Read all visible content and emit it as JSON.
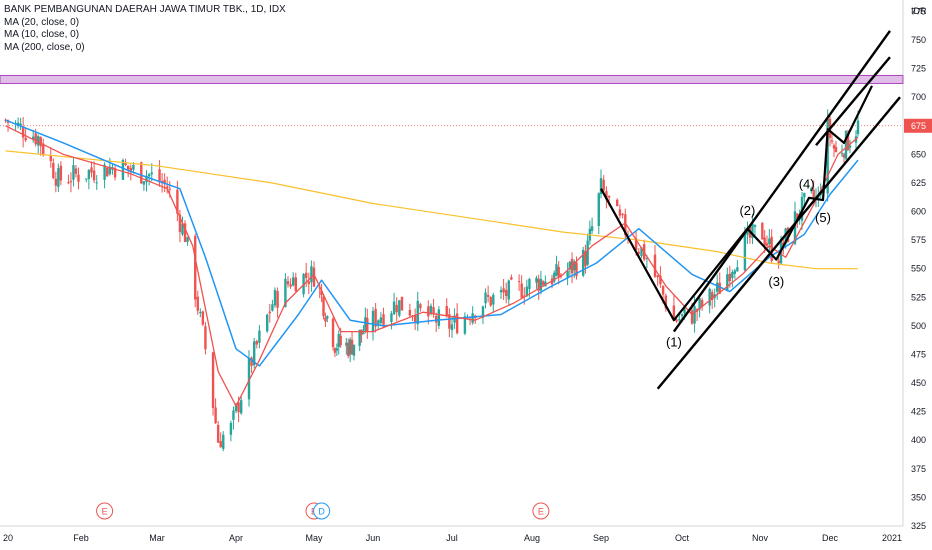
{
  "legend": {
    "title": "BANK PEMBANGUNAN DAERAH JAWA TIMUR TBK., 1D, IDX",
    "ma1": "MA (20, close, 0)",
    "ma2": "MA (10, close, 0)",
    "ma3": "MA (200, close, 0)"
  },
  "colors": {
    "up": "#26a69a",
    "down": "#ef5350",
    "ma10": "#ef5350",
    "ma20": "#2196f3",
    "ma200": "#fbc02d",
    "zone": "#e1bee7",
    "zone_border": "#ab47bc",
    "price_label": "#ef5350",
    "events": "#ef5350",
    "dividend": "#2196f3"
  },
  "chart_data": {
    "type": "candlestick",
    "currency": "IDR",
    "last_price": "675",
    "y_ticks": [
      "775",
      "750",
      "725",
      "700",
      "675",
      "650",
      "625",
      "600",
      "575",
      "550",
      "525",
      "500",
      "475",
      "450",
      "425",
      "400",
      "375",
      "350",
      "325"
    ],
    "x_ticks": [
      "20",
      "Feb",
      "Mar",
      "Apr",
      "May",
      "Jun",
      "Jul",
      "Aug",
      "Sep",
      "Oct",
      "Nov",
      "Dec",
      "2021"
    ],
    "ylim": [
      325,
      785
    ],
    "resistance_zone": [
      712,
      719
    ],
    "price_path": [
      [
        "2020-01-02",
        680
      ],
      [
        "2020-01-15",
        665
      ],
      [
        "2020-01-23",
        628
      ],
      [
        "2020-02-05",
        635
      ],
      [
        "2020-02-15",
        640
      ],
      [
        "2020-02-27",
        632
      ],
      [
        "2020-03-05",
        622
      ],
      [
        "2020-03-12",
        580
      ],
      [
        "2020-03-20",
        480
      ],
      [
        "2020-03-25",
        400
      ],
      [
        "2020-03-30",
        410
      ],
      [
        "2020-04-07",
        470
      ],
      [
        "2020-04-15",
        520
      ],
      [
        "2020-04-22",
        540
      ],
      [
        "2020-05-01",
        545
      ],
      [
        "2020-05-05",
        525
      ],
      [
        "2020-05-12",
        485
      ],
      [
        "2020-05-20",
        482
      ],
      [
        "2020-06-01",
        505
      ],
      [
        "2020-06-10",
        520
      ],
      [
        "2020-06-20",
        510
      ],
      [
        "2020-07-01",
        500
      ],
      [
        "2020-07-12",
        520
      ],
      [
        "2020-07-24",
        530
      ],
      [
        "2020-08-05",
        540
      ],
      [
        "2020-08-15",
        545
      ],
      [
        "2020-08-25",
        560
      ],
      [
        "2020-09-01",
        620
      ],
      [
        "2020-09-08",
        590
      ],
      [
        "2020-09-18",
        560
      ],
      [
        "2020-09-28",
        505
      ],
      [
        "2020-10-05",
        510
      ],
      [
        "2020-10-15",
        530
      ],
      [
        "2020-10-25",
        570
      ],
      [
        "2020-11-01",
        585
      ],
      [
        "2020-11-08",
        558
      ],
      [
        "2020-11-15",
        590
      ],
      [
        "2020-11-22",
        612
      ],
      [
        "2020-11-26",
        610
      ],
      [
        "2020-11-30",
        672
      ],
      [
        "2020-12-04",
        650
      ],
      [
        "2020-12-10",
        662
      ],
      [
        "2020-12-15",
        675
      ]
    ],
    "ma10": [
      [
        "2020-01-02",
        675
      ],
      [
        "2020-01-25",
        650
      ],
      [
        "2020-02-20",
        633
      ],
      [
        "2020-03-05",
        620
      ],
      [
        "2020-03-15",
        570
      ],
      [
        "2020-03-25",
        460
      ],
      [
        "2020-04-01",
        430
      ],
      [
        "2020-04-10",
        470
      ],
      [
        "2020-04-20",
        520
      ],
      [
        "2020-05-01",
        545
      ],
      [
        "2020-05-15",
        495
      ],
      [
        "2020-06-01",
        495
      ],
      [
        "2020-06-20",
        512
      ],
      [
        "2020-07-10",
        505
      ],
      [
        "2020-07-25",
        520
      ],
      [
        "2020-08-15",
        545
      ],
      [
        "2020-08-28",
        570
      ],
      [
        "2020-09-10",
        590
      ],
      [
        "2020-09-25",
        535
      ],
      [
        "2020-10-05",
        510
      ],
      [
        "2020-10-25",
        545
      ],
      [
        "2020-11-05",
        570
      ],
      [
        "2020-11-12",
        560
      ],
      [
        "2020-11-25",
        610
      ],
      [
        "2020-12-05",
        650
      ],
      [
        "2020-12-15",
        665
      ]
    ],
    "ma20": [
      [
        "2020-01-02",
        680
      ],
      [
        "2020-01-25",
        660
      ],
      [
        "2020-02-20",
        635
      ],
      [
        "2020-03-10",
        620
      ],
      [
        "2020-03-20",
        560
      ],
      [
        "2020-04-01",
        480
      ],
      [
        "2020-04-10",
        465
      ],
      [
        "2020-04-25",
        510
      ],
      [
        "2020-05-05",
        540
      ],
      [
        "2020-05-20",
        505
      ],
      [
        "2020-06-05",
        500
      ],
      [
        "2020-06-25",
        505
      ],
      [
        "2020-07-20",
        510
      ],
      [
        "2020-08-10",
        535
      ],
      [
        "2020-08-30",
        555
      ],
      [
        "2020-09-15",
        585
      ],
      [
        "2020-10-05",
        545
      ],
      [
        "2020-10-20",
        530
      ],
      [
        "2020-11-05",
        560
      ],
      [
        "2020-11-20",
        580
      ],
      [
        "2020-12-01",
        615
      ],
      [
        "2020-12-15",
        645
      ]
    ],
    "ma200": [
      [
        "2020-01-02",
        653
      ],
      [
        "2020-03-01",
        640
      ],
      [
        "2020-04-15",
        625
      ],
      [
        "2020-06-01",
        607
      ],
      [
        "2020-07-15",
        592
      ],
      [
        "2020-08-15",
        582
      ],
      [
        "2020-09-15",
        575
      ],
      [
        "2020-10-15",
        565
      ],
      [
        "2020-11-05",
        555
      ],
      [
        "2020-11-25",
        550
      ],
      [
        "2020-12-15",
        550
      ]
    ],
    "channel_lines": [
      [
        [
          "2020-09-28",
          495
        ],
        [
          "2020-12-31",
          758
        ]
      ],
      [
        [
          "2020-09-22",
          445
        ],
        [
          "2021-01-05",
          700
        ]
      ],
      [
        [
          "2020-11-25",
          658
        ],
        [
          "2020-12-31",
          735
        ]
      ]
    ],
    "wave_path": [
      [
        "2020-09-01",
        620
      ],
      [
        "2020-09-28",
        505
      ],
      [
        "2020-10-27",
        585
      ],
      [
        "2020-11-08",
        558
      ],
      [
        "2020-11-22",
        612
      ],
      [
        "2020-11-28",
        610
      ],
      [
        "2020-11-30",
        672
      ],
      [
        "2020-12-08",
        660
      ],
      [
        "2020-12-22",
        710
      ]
    ],
    "wave_labels": [
      {
        "label": "(1)",
        "x": "2020-09-28",
        "y": 482
      },
      {
        "label": "(2)",
        "x": "2020-10-27",
        "y": 597
      },
      {
        "label": "(3)",
        "x": "2020-11-08",
        "y": 535
      },
      {
        "label": "(4)",
        "x": "2020-11-21",
        "y": 620
      },
      {
        "label": "(5)",
        "x": "2020-11-28",
        "y": 591
      }
    ],
    "events": [
      {
        "label": "E",
        "x": "2020-02-10",
        "kind": "earnings"
      },
      {
        "label": "E",
        "x": "2020-05-01",
        "kind": "earnings"
      },
      {
        "label": "D",
        "x": "2020-05-05",
        "kind": "dividend"
      },
      {
        "label": "E",
        "x": "2020-08-05",
        "kind": "earnings"
      }
    ]
  }
}
